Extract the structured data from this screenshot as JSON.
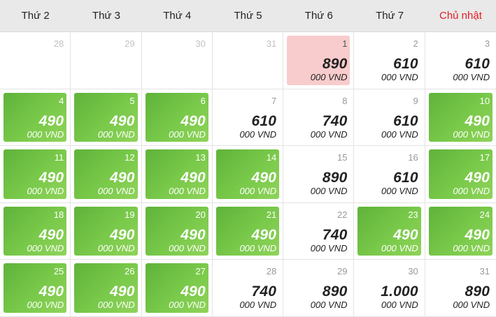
{
  "weekdays": [
    "Thứ 2",
    "Thứ 3",
    "Thứ 4",
    "Thứ 5",
    "Thứ 6",
    "Thứ 7",
    "Chủ nhật"
  ],
  "colors": {
    "cheapest": "#6cbf43",
    "selected": "#f8cccc",
    "sunday": "#e31b23"
  },
  "days": [
    {
      "day": "28",
      "price": "",
      "unit": "",
      "state": "other"
    },
    {
      "day": "29",
      "price": "",
      "unit": "",
      "state": "other"
    },
    {
      "day": "30",
      "price": "",
      "unit": "",
      "state": "other"
    },
    {
      "day": "31",
      "price": "",
      "unit": "",
      "state": "other"
    },
    {
      "day": "1",
      "price": "890",
      "unit": "000 VND",
      "state": "pink"
    },
    {
      "day": "2",
      "price": "610",
      "unit": "000 VND",
      "state": "normal"
    },
    {
      "day": "3",
      "price": "610",
      "unit": "000 VND",
      "state": "normal"
    },
    {
      "day": "4",
      "price": "490",
      "unit": "000 VND",
      "state": "green"
    },
    {
      "day": "5",
      "price": "490",
      "unit": "000 VND",
      "state": "green"
    },
    {
      "day": "6",
      "price": "490",
      "unit": "000 VND",
      "state": "green"
    },
    {
      "day": "7",
      "price": "610",
      "unit": "000 VND",
      "state": "normal"
    },
    {
      "day": "8",
      "price": "740",
      "unit": "000 VND",
      "state": "normal"
    },
    {
      "day": "9",
      "price": "610",
      "unit": "000 VND",
      "state": "normal"
    },
    {
      "day": "10",
      "price": "490",
      "unit": "000 VND",
      "state": "green"
    },
    {
      "day": "11",
      "price": "490",
      "unit": "000 VND",
      "state": "green"
    },
    {
      "day": "12",
      "price": "490",
      "unit": "000 VND",
      "state": "green"
    },
    {
      "day": "13",
      "price": "490",
      "unit": "000 VND",
      "state": "green"
    },
    {
      "day": "14",
      "price": "490",
      "unit": "000 VND",
      "state": "green"
    },
    {
      "day": "15",
      "price": "890",
      "unit": "000 VND",
      "state": "normal"
    },
    {
      "day": "16",
      "price": "610",
      "unit": "000 VND",
      "state": "normal"
    },
    {
      "day": "17",
      "price": "490",
      "unit": "000 VND",
      "state": "green"
    },
    {
      "day": "18",
      "price": "490",
      "unit": "000 VND",
      "state": "green"
    },
    {
      "day": "19",
      "price": "490",
      "unit": "000 VND",
      "state": "green"
    },
    {
      "day": "20",
      "price": "490",
      "unit": "000 VND",
      "state": "green"
    },
    {
      "day": "21",
      "price": "490",
      "unit": "000 VND",
      "state": "green"
    },
    {
      "day": "22",
      "price": "740",
      "unit": "000 VND",
      "state": "normal"
    },
    {
      "day": "23",
      "price": "490",
      "unit": "000 VND",
      "state": "green"
    },
    {
      "day": "24",
      "price": "490",
      "unit": "000 VND",
      "state": "green"
    },
    {
      "day": "25",
      "price": "490",
      "unit": "000 VND",
      "state": "green"
    },
    {
      "day": "26",
      "price": "490",
      "unit": "000 VND",
      "state": "green"
    },
    {
      "day": "27",
      "price": "490",
      "unit": "000 VND",
      "state": "green"
    },
    {
      "day": "28",
      "price": "740",
      "unit": "000 VND",
      "state": "normal"
    },
    {
      "day": "29",
      "price": "890",
      "unit": "000 VND",
      "state": "normal"
    },
    {
      "day": "30",
      "price": "1.000",
      "unit": "000 VND",
      "state": "normal"
    },
    {
      "day": "31",
      "price": "890",
      "unit": "000 VND",
      "state": "normal"
    }
  ]
}
